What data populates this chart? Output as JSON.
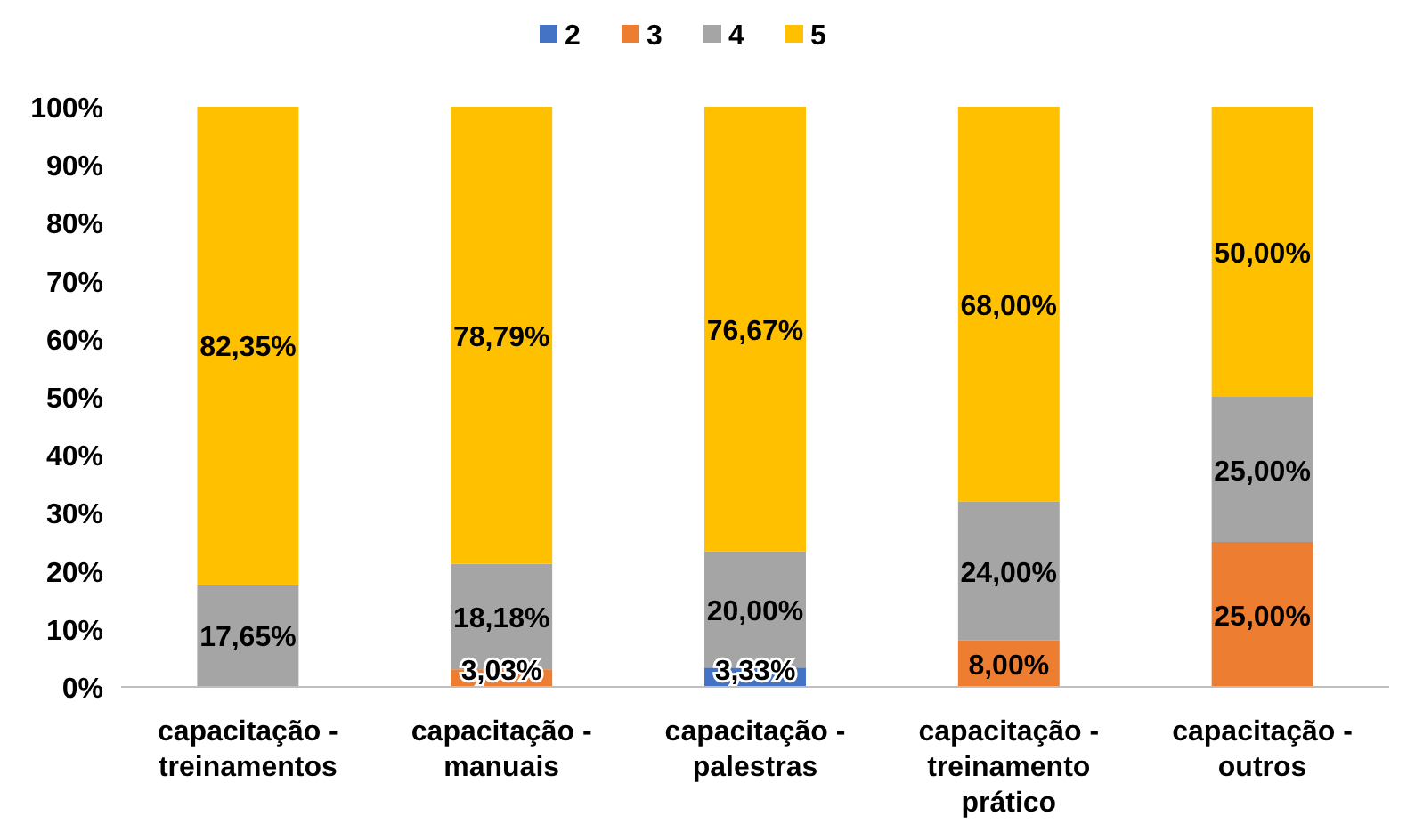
{
  "chart_data": {
    "type": "bar",
    "stacked": true,
    "categories": [
      "capacitação - treinamentos",
      "capacitação - manuais",
      "capacitação - palestras",
      "capacitação - treinamento prático",
      "capacitação - outros"
    ],
    "series": [
      {
        "name": "2",
        "color": "#4472c4",
        "values": [
          null,
          null,
          3.33,
          null,
          null
        ],
        "value_labels": [
          null,
          null,
          "3,33%",
          null,
          null
        ]
      },
      {
        "name": "3",
        "color": "#ed7d31",
        "values": [
          null,
          3.03,
          null,
          8,
          25
        ],
        "value_labels": [
          null,
          "3,03%",
          null,
          "8,00%",
          "25,00%"
        ]
      },
      {
        "name": "4",
        "color": "#a5a5a5",
        "values": [
          17.65,
          18.18,
          20,
          24,
          25
        ],
        "value_labels": [
          "17,65%",
          "18,18%",
          "20,00%",
          "24,00%",
          "25,00%"
        ]
      },
      {
        "name": "5",
        "color": "#ffc000",
        "values": [
          82.35,
          78.79,
          76.67,
          68,
          50
        ],
        "value_labels": [
          "82,35%",
          "78,79%",
          "76,67%",
          "68,00%",
          "50,00%"
        ]
      }
    ],
    "ylim": [
      0,
      100
    ],
    "yticks": [
      {
        "value": 0,
        "label": "0%"
      },
      {
        "value": 10,
        "label": "10%"
      },
      {
        "value": 20,
        "label": "20%"
      },
      {
        "value": 30,
        "label": "30%"
      },
      {
        "value": 40,
        "label": "40%"
      },
      {
        "value": 50,
        "label": "50%"
      },
      {
        "value": 60,
        "label": "60%"
      },
      {
        "value": 70,
        "label": "70%"
      },
      {
        "value": 80,
        "label": "80%"
      },
      {
        "value": 90,
        "label": "90%"
      },
      {
        "value": 100,
        "label": "100%"
      }
    ],
    "grid": false,
    "legend": "top"
  }
}
